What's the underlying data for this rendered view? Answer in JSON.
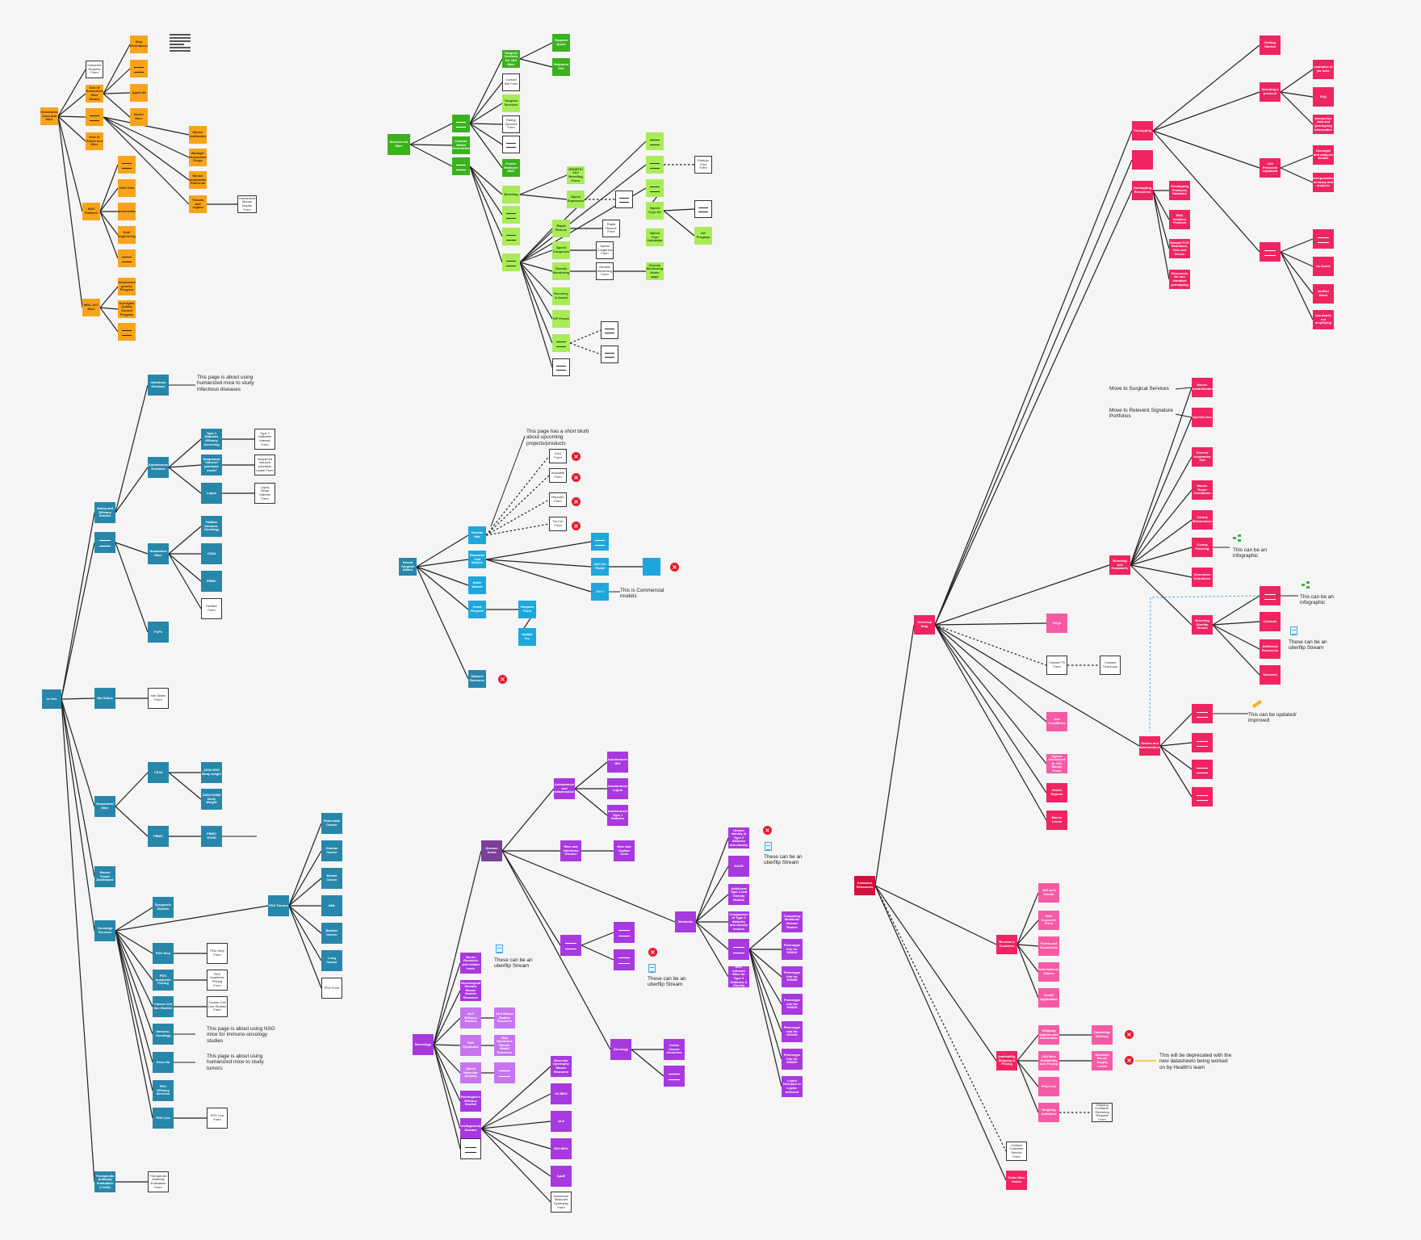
{
  "nodes": {
    "orange_root": "Humanized Cmm and Mice",
    "orange_req_form": "Immunize Request Form",
    "orange_hmice": "Gen of Humanized Mice Strains",
    "orange_how_to_select": "How to Select and Mice",
    "orange_nsg_platform": "NSG Platform",
    "orange_mrs_lab": "MRs, AST Mice",
    "orange_first_gen": "Step Generations",
    "orange_agent_mt": "Agent Mt",
    "orange_model_mice": "Model Mice",
    "orange_mouse_antibodies": "Mouse Antibodies",
    "orange_biologic": "Biologic Humanized Drugs",
    "orange_ntm": "Mouse Humanization Platforms",
    "orange_tissues": "Tissues and organs",
    "orange_nsg_kills": "NSG Kills",
    "orange_humanized_mice": "Humanization",
    "orange_dual": "Dual Engineering",
    "orange_humanized_genetic": "Humanized genetic Program",
    "orange_surrogate": "Surrogate Quality Control Program",
    "orange_form": "Humanized Mouse Inquiry Form",
    "green_root": "Services for Mice",
    "green_custom": "Custom Model Generation",
    "green_surgical": "Surgical Services for JAX Mice",
    "green_contact_sell": "Contact Sell Form",
    "green_surg_services": "Surgical Services",
    "green_rating": "Rating Services Form",
    "green_cryo": "Frozen Embryos Mice",
    "green_request": "Request Quote",
    "green_ship": "Shipment Info",
    "green_breeding": "Breeding",
    "green_genetic_jax": "GENETIC JAX Breeding Form",
    "green_speed_exp": "Speed Expansion",
    "green_rapid": "Rapid Rescue",
    "green_rapid_form": "Rapid Rescue Form",
    "green_speed_cong": "Speed Congenics",
    "green_speed_form": "Speed Congenics Form",
    "green_genetic_mon": "Genetic Monitoring",
    "green_genetic_form": "Genetic Monitoring Form",
    "green_genetic_mon2": "Genetic Monitoring Home page",
    "green_sperm": "Speed Cryo Kit",
    "green_sperm_calc": "Speed Cryo Calculator",
    "green_rec": "Recovery & Assist",
    "green_ivf": "IVF Freeze",
    "green_embryo": "Embryo Cryo Form",
    "green_kit": "Kit Program",
    "cyan_root": "Neural Surgical Affairs",
    "cyan_genetic": "Genetic Info",
    "cyan_research": "Research Tool Models",
    "cyan_allele": "Allele Search",
    "cyan_grant": "Grant Request",
    "cyan_request": "Request Form",
    "cyan_update": "Update Inc",
    "cyan_gdpr": "JAX Cre Portal",
    "cyan_genetic_data": "Genetic Dataset",
    "cyan_cre_1": "Cre 1",
    "cyan_pp": "Alliance Resource",
    "cyan_form_a": "Cre1 Form",
    "cyan_form_b": "Inducible Form",
    "cyan_form_c": "Reporter Form",
    "cyan_form_d": "Tet-Cre Form",
    "teal_root": "In Vivo",
    "teal_infectious": "Infectious Diseases",
    "teal_autoimmune": "Autoimmune Diseases",
    "teal_type1": "Type 1 Diabetes Efficacy Screening",
    "teal_type1_form": "Type 1 Diabetes Interest Form",
    "teal_imiquimod": "Imiquimod induced psoriasis model",
    "teal_imiquimod_form": "Imiquimod induced psoriasis model Form",
    "teal_lupus": "Lupus",
    "teal_lupus_form": "Lupus Study Interest Form",
    "teal_safety": "Safety and Efficacy Studies",
    "teal_humanized": "Humanized Mice",
    "teal_hu_immune": "HuMice Immuno-Oncology",
    "teal_cd34_a": "CD34",
    "teal_pbmc_a": "PBMC",
    "teal_humice_form": "HuMice Form",
    "teal_pk": "PoPs",
    "teal_ntx": "Ntx Slides",
    "teal_ntx_form": "Ntx Slides Form",
    "teal_humanized2": "Humanized Mice",
    "teal_cd34": "CD34",
    "teal_cd34_nsg": "CD34 NSG Body weight",
    "teal_cd34_sgm3": "CD34 SGM3 Body Weight",
    "teal_pbmc": "PBMC",
    "teal_pbmc_gvhd": "PBMC GVHD",
    "teal_pbmc_note": "Relates to CRES",
    "teal_mouse_dashboard": "Mouse Tumor Dashboard",
    "teal_oncology": "Oncology Services",
    "teal_syngeneic": "Syngeneic Studies",
    "teal_pdx_tumors": "PDX Tumors",
    "teal_pancreatic": "Pancreatic Cancer",
    "teal_ovarian": "Ovarian Cancer",
    "teal_breast": "Breast Cancer",
    "teal_aml": "AML",
    "teal_bladder": "Bladder Cancer",
    "teal_lung": "Lung Cancer",
    "teal_pdx_form": "PDX Form",
    "teal_pdx_sery": "PDX Sery",
    "teal_pdx_sery_form": "PDX Sery Form",
    "teal_pdx_academic": "PDX Academic Pricing",
    "teal_pdx_academic_form": "PDX Academic Pricing Form",
    "teal_cancer_cell": "Cancer Cell line Studies",
    "teal_cancer_cell_form": "Cancer Cell Line Studies Form",
    "teal_immuno_onc": "Immuno-Oncology",
    "teal_onco_hu": "Onco Hu",
    "teal_pdx_efficacy": "PDX Efficacy Services",
    "teal_pdx_live": "PDX Live",
    "teal_pdx_live_form": "PDX Live Form",
    "teal_therapeutic": "Therapeutic Antibody Evaluation (TOAE)",
    "teal_therapeutic_form": "Therapeutic Antibody Evaluation Form",
    "purple_root": "Disease Areas",
    "purple_autoimmune": "Autoimmune and Inflammation",
    "purple_ad": "Autoimmune IBD",
    "purple_lupus": "Autoimmune Lupus",
    "purple_type1": "Autoimmune Type 1 Diabetes",
    "purple_rare": "Rare and Infectious Disease",
    "purple_rare_orphan": "Rare and Orphan Tools",
    "purple_metabolic": "Metabolic",
    "purple_obese": "Human obesity in Type 2 diabetes and obesity",
    "purple_nash": "NASH",
    "purple_additional": "Additional Type 2 and Obesity Models",
    "purple_comparison": "Comparison of Type 2 diabetes and obesity models",
    "purple_diet": "Diet-induced Mice for Type 2 Diabetes & Obesity",
    "purple_compare_meta": "Comparing Metabolic disease Models",
    "purple_pheno_a": "Phenotype info for 000642",
    "purple_pheno_b": "Phenotype info for 009496",
    "purple_pheno_c": "Phenotype info for 000632",
    "purple_pheno_d": "Phenotype info for 002449",
    "purple_pheno_e": "Phenotype info for 000697",
    "purple_leptin": "Leptin Receptor in Leptin-deficient",
    "purple_oncology": "Oncology",
    "purple_online": "Online Cancer resources",
    "purple_neuro": "Neurology",
    "purple_neuro_ad": "Neuro Research and related tools",
    "purple_neuro_mouse": "Neurological Disease Mouse Models Resource",
    "purple_als": "ALS Efficacy Studies",
    "purple_als_mouse": "ALS Mouse Models Resource",
    "purple_rett": "Rett Syndrome",
    "purple_rett_res": "Rett Syndrome Mouse Model Resource",
    "purple_sma": "Spinal Muscular Atrophy",
    "purple_huntington": "Huntington's Efficacy Studies",
    "purple_neurodegen": "Neurodegenerative Disease",
    "purple_muscular": "Muscular Dystrophy Mouse Resource",
    "purple_d2_mdx": "D2-MDX",
    "purple_als2": "ALS",
    "purple_bl6_mdx": "B10-MDX",
    "purple_apoe": "ApoE",
    "purple_duchenne": "Duchenne Muscular Dystrophy Form",
    "pink_genotyping": "Genotyping",
    "pink_getting_started": "Getting Started",
    "pink_selecting": "Selecting a protocol",
    "pink_examples": "examples of jax mice",
    "pink_faq": "FAQ",
    "pink_interpreted": "Interpreted data and genotyping information",
    "pink_jax_protocols": "JAX Protocols explained",
    "pink_genotype_assay": "Genotype and analysis details",
    "pink_interpretation": "Interpretation of assay and analysis",
    "pink_genotyping_faq": "Genotyping FAQ",
    "pink_genotyping_resources": "Genotyping Resources",
    "pink_genotyping_prot": "Genotyping Protocols Database",
    "pink_dna_isolation": "DNA Isolation Protocol",
    "pink_sample_pcr": "Sample PCR Reactions, Gels and Genes",
    "pink_resources_nonstandard": "Resources for non standard genotyping",
    "pink_qc_bands": "no bands",
    "pink_artifact": "Artifact Band",
    "pink_low_bands": "low bands not amplifying",
    "pink_technical": "Technical Help",
    "pink_mouse_health": "Mouse Health/Welfare",
    "pink_special_care": "Special Care",
    "pink_general_husbandry": "General Husbandry Tips",
    "pink_mouse_room": "Mouse Room Conditions",
    "pink_colony_maint": "Colony Maintenance",
    "pink_colony_planning": "Colony Planning",
    "pink_generation": "Generation Definitions",
    "pink_breeding_husbandry": "Breeding and Husbandry",
    "pink_breeding_uberflip": "Breeding Uberflip Stream",
    "pink_controls": "Controls",
    "pink_additional_res": "Additional Resources",
    "pink_schemes": "Schemes",
    "pink_strains_nomen": "Strains and Nomenclature",
    "pink_faqs": "FAQs",
    "pink_contact_ts": "Contact TS Form",
    "pink_contact_thanks": "Contact Thank you",
    "pink_use_conditions": "Use Conditions",
    "pink_agents_health": "Agents introduced to JAX Mouse Room",
    "pink_health_reports": "Health Reports",
    "pink_barrier": "Barrier Levels",
    "crimson_root": "Customer Resources",
    "lpink_vendor": "Become a Customer",
    "lpink_jax_vendor": "JAX as a Vendor",
    "lpink_new_customer": "New Customer Form",
    "lpink_forms": "Forms and Documents",
    "lpink_international": "International Orders",
    "lpink_credit": "Credit Application",
    "lpink_availability": "Availability, Shipping & Pricing",
    "lpink_shipping_options": "Shipping Options and Information",
    "lpink_cambridge": "Cambridge Delivery",
    "lpink_jax_mice_avail": "JAX Mice Availability and Pricing",
    "lpink_standard_supply": "Standard Mouse Supply Levels",
    "lpink_price_list": "Price List",
    "lpink_shipping_container": "Shipping Container",
    "lpink_shipping_form": "Shipping Container Returning Request Form",
    "lpink_contact_cs": "Contact Customer Service Form",
    "lpink_order_mice": "Order Mice Online"
  },
  "notes": {
    "infectious": "This page is about using humanized mice to study infectious diseases",
    "cyan_top": "This page has a short blurb about upcoming projects/products",
    "cre_commercial": "This is Commercial models",
    "immuno_onc": "This page is about using NSG mice for immuno-oncology studies",
    "onco_hu": "This page is about using humanized mice to study tumors",
    "uberflip_a": "These can be an uberflip Stream",
    "uberflip_b": "These can be an uberflip Stream",
    "uberflip_c": "These can be an uberflip Stream",
    "uberflip_d": "These can be an uberflip Stream",
    "move_surgical": "Move to Surgical Services",
    "move_relevant": "Move to Relevent Signature Portfolios",
    "infographic_a": "This can be an infographic",
    "infographic_b": "This can be an infographic",
    "updated": "This can be updated/ improved",
    "deprecated": "This will be deprecated with the new datasheets being worked on by Health's team"
  },
  "colors": {
    "orange": "#f9a31a",
    "green": "#39b21c",
    "lgreen": "#a9ec58",
    "teal": "#2787ab",
    "cyan": "#1ea7dc",
    "purple": "#a838df",
    "pink": "#ef2461",
    "crimson": "#d0123d",
    "lpink": "#f55ba4"
  },
  "icons": [
    "close-x-icon",
    "document-icon",
    "tree-icon",
    "pencil-icon",
    "document-lines-icon"
  ]
}
